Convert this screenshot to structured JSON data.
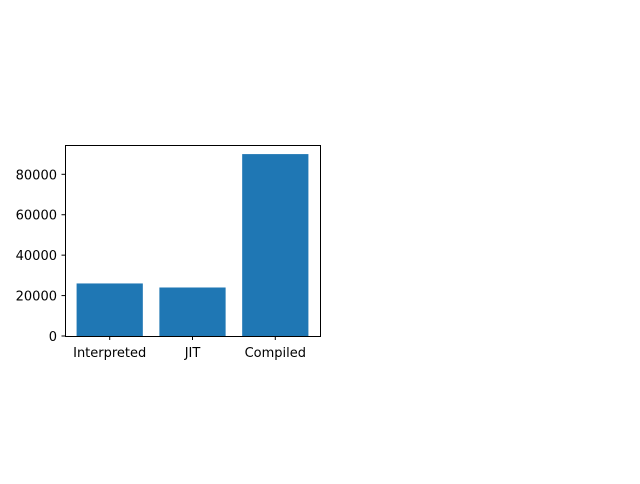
{
  "chart_data": {
    "type": "bar",
    "categories": [
      "Interpreted",
      "JIT",
      "Compiled"
    ],
    "values": [
      26000,
      24000,
      90000
    ],
    "ylim": [
      0,
      94500
    ],
    "yticks": [
      0,
      20000,
      40000,
      60000,
      80000
    ],
    "ytick_labels": [
      "0",
      "20000",
      "40000",
      "60000",
      "80000"
    ],
    "bar_color": "#1f77b4",
    "grid": false,
    "legend": false,
    "title": "",
    "xlabel": "",
    "ylabel": ""
  }
}
